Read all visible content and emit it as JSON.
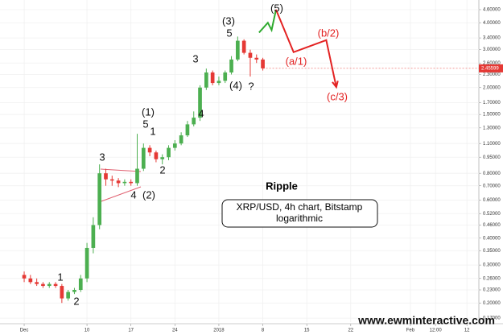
{
  "chart_data": {
    "type": "candlestick",
    "title": "Ripple",
    "subtitle": [
      "XRP/USD, 4h chart, Bitstamp",
      "logarithmic"
    ],
    "watermark": "www.ewminteractive.com",
    "log_scale": true,
    "grid": true,
    "up_color": "#4caf50",
    "down_color": "#e53935",
    "xlim": [
      -3.85,
      72.4
    ],
    "xticks": [
      {
        "value": 0,
        "label": "Dec"
      },
      10,
      17,
      24,
      {
        "value": 31,
        "label": "2018"
      },
      {
        "value": 38,
        "label": "8"
      },
      {
        "value": 45,
        "label": "15"
      },
      {
        "value": 52,
        "label": "22"
      },
      {
        "value": 61.5,
        "label": "Feb"
      },
      {
        "value": 65.5,
        "label": "12:00"
      },
      {
        "value": 70.5,
        "label": "12"
      }
    ],
    "ylim": [
      0.163,
      5.1
    ],
    "yticks": [
      {
        "value": 4.6,
        "label": "4.60000"
      },
      {
        "value": 4.0,
        "label": "4.00000"
      },
      {
        "value": 3.4,
        "label": "3.40000"
      },
      {
        "value": 3.0,
        "label": "3.00000"
      },
      {
        "value": 2.6,
        "label": "2.60000"
      },
      {
        "value": 2.3,
        "label": "2.30000"
      },
      {
        "value": 2.0,
        "label": "2.00000"
      },
      {
        "value": 1.7,
        "label": "1.70000"
      },
      {
        "value": 1.5,
        "label": "1.50000"
      },
      {
        "value": 1.3,
        "label": "1.30000"
      },
      {
        "value": 1.1,
        "label": "1.10000"
      },
      {
        "value": 0.95,
        "label": "0.95000"
      },
      {
        "value": 0.8,
        "label": "0.80000"
      },
      {
        "value": 0.7,
        "label": "0.70000"
      },
      {
        "value": 0.6,
        "label": "0.60000"
      },
      {
        "value": 0.52,
        "label": "0.52000"
      },
      {
        "value": 0.46,
        "label": "0.46000"
      },
      {
        "value": 0.4,
        "label": "0.40000"
      },
      {
        "value": 0.35,
        "label": "0.35000"
      },
      {
        "value": 0.3,
        "label": "0.30000"
      },
      {
        "value": 0.26,
        "label": "0.26000"
      },
      {
        "value": 0.23,
        "label": "0.23000"
      },
      {
        "value": 0.2,
        "label": "0.20000"
      },
      {
        "value": 0.17,
        "label": "0.17000"
      }
    ],
    "ohlc": {
      "x": [
        0,
        1,
        2,
        3,
        4,
        5,
        6,
        7,
        8,
        9,
        10,
        11,
        12,
        13,
        14,
        15,
        16,
        17,
        18,
        19,
        20,
        21,
        22,
        23,
        24,
        25,
        26,
        27,
        28,
        29,
        30,
        31,
        32,
        33,
        34,
        35,
        36,
        37,
        38
      ],
      "open": [
        0.27,
        0.26,
        0.25,
        0.245,
        0.24,
        0.245,
        0.24,
        0.21,
        0.225,
        0.23,
        0.26,
        0.36,
        0.46,
        0.8,
        0.75,
        0.74,
        0.72,
        0.73,
        0.72,
        0.84,
        1.05,
        1.0,
        0.93,
        0.95,
        1.05,
        1.1,
        1.2,
        1.35,
        1.45,
        2.0,
        2.35,
        2.1,
        2.15,
        2.35,
        2.7,
        3.3,
        2.9,
        2.75,
        2.7
      ],
      "high": [
        0.28,
        0.27,
        0.26,
        0.25,
        0.25,
        0.25,
        0.245,
        0.23,
        0.235,
        0.27,
        0.38,
        0.5,
        0.88,
        0.84,
        0.78,
        0.76,
        0.75,
        0.75,
        1.22,
        1.1,
        1.08,
        1.02,
        0.98,
        1.08,
        1.14,
        1.24,
        1.4,
        1.55,
        2.05,
        2.45,
        2.4,
        2.25,
        2.4,
        2.8,
        3.45,
        3.35,
        3.0,
        2.85,
        2.75
      ],
      "low": [
        0.25,
        0.245,
        0.24,
        0.235,
        0.235,
        0.235,
        0.2,
        0.205,
        0.22,
        0.225,
        0.25,
        0.34,
        0.44,
        0.7,
        0.7,
        0.69,
        0.7,
        0.7,
        0.7,
        0.82,
        0.96,
        0.9,
        0.88,
        0.92,
        1.02,
        1.08,
        1.18,
        1.32,
        1.4,
        1.95,
        2.05,
        2.05,
        2.1,
        2.3,
        2.65,
        2.85,
        2.25,
        2.6,
        2.4
      ],
      "close": [
        0.26,
        0.25,
        0.245,
        0.24,
        0.245,
        0.24,
        0.21,
        0.225,
        0.23,
        0.26,
        0.36,
        0.46,
        0.8,
        0.75,
        0.74,
        0.72,
        0.73,
        0.72,
        0.84,
        1.05,
        1.0,
        0.93,
        0.95,
        1.05,
        1.1,
        1.2,
        1.35,
        1.45,
        2.0,
        2.35,
        2.1,
        2.15,
        2.35,
        2.7,
        3.3,
        2.9,
        2.75,
        2.7,
        2.45599
      ]
    },
    "series": [
      {
        "color": "#2eaa2e",
        "x": [
          37.4,
          38.8,
          39.4,
          40.1
        ],
        "values": [
          3.6,
          4.0,
          3.7,
          4.6
        ]
      },
      {
        "color": "#e32222",
        "x": [
          40.1,
          42.9,
          48.1,
          49.7
        ],
        "values": [
          4.6,
          2.92,
          3.32,
          2.01
        ]
      }
    ],
    "annotations": [
      {
        "text": "1",
        "color": "#111"
      },
      {
        "text": "2",
        "color": "#111"
      },
      {
        "text": "3",
        "color": "#111"
      },
      {
        "text": "4",
        "color": "#111"
      },
      {
        "text": "(2)",
        "color": "#111"
      },
      {
        "text": "(1)",
        "color": "#111"
      },
      {
        "text": "5",
        "color": "#111"
      },
      {
        "text": "1",
        "color": "#111"
      },
      {
        "text": "2",
        "color": "#111"
      },
      {
        "text": "3",
        "color": "#111"
      },
      {
        "text": "4",
        "color": "#111"
      },
      {
        "text": "(3)",
        "color": "#111"
      },
      {
        "text": "5",
        "color": "#111"
      },
      {
        "text": "(4)",
        "color": "#111"
      },
      {
        "text": "?",
        "color": "#111"
      },
      {
        "text": "(5)",
        "color": "#111"
      },
      {
        "text": "(a/1)",
        "color": "#e32222"
      },
      {
        "text": "(b/2)",
        "color": "#e32222"
      },
      {
        "text": "(c/3)",
        "color": "#e32222"
      }
    ]
  }
}
